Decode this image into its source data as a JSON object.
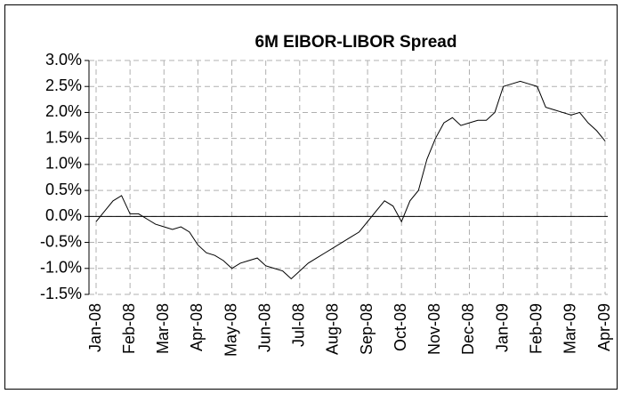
{
  "chart_data": {
    "type": "line",
    "title": "6M EIBOR-LIBOR Spread",
    "categories": [
      "Jan-08",
      null,
      null,
      null,
      "Feb-08",
      null,
      null,
      null,
      "Mar-08",
      null,
      null,
      null,
      "Apr-08",
      null,
      null,
      null,
      "May-08",
      null,
      null,
      null,
      "Jun-08",
      null,
      null,
      null,
      "Jul-08",
      null,
      null,
      null,
      "Aug-08",
      null,
      null,
      null,
      "Sep-08",
      null,
      null,
      null,
      "Oct-08",
      null,
      null,
      null,
      "Nov-08",
      null,
      null,
      null,
      "Dec-08",
      null,
      null,
      null,
      "Jan-09",
      null,
      null,
      null,
      "Feb-09",
      null,
      null,
      null,
      "Mar-09",
      null,
      null,
      null,
      "Apr-09"
    ],
    "values": [
      -0.1,
      0.1,
      0.3,
      0.4,
      0.05,
      0.05,
      -0.05,
      -0.15,
      -0.2,
      -0.25,
      -0.2,
      -0.3,
      -0.55,
      -0.7,
      -0.75,
      -0.85,
      -1.0,
      -0.9,
      -0.85,
      -0.8,
      -0.95,
      -1.0,
      -1.05,
      -1.2,
      -1.05,
      -0.9,
      -0.8,
      -0.7,
      -0.6,
      -0.5,
      -0.4,
      -0.3,
      -0.1,
      0.1,
      0.3,
      0.2,
      -0.1,
      0.3,
      0.5,
      1.1,
      1.5,
      1.8,
      1.9,
      1.75,
      1.8,
      1.85,
      1.85,
      2.0,
      2.5,
      2.55,
      2.6,
      2.55,
      2.5,
      2.1,
      2.05,
      2.0,
      1.95,
      2.0,
      1.8,
      1.65,
      1.45
    ],
    "color": "#000000",
    "ylim": [
      -1.5,
      3
    ],
    "yticks": [
      {
        "value": -1.5,
        "label": "-1.5%"
      },
      {
        "value": -1,
        "label": "-1.0%"
      },
      {
        "value": -0.5,
        "label": "-0.5%"
      },
      {
        "value": 0,
        "label": "0.0%"
      },
      {
        "value": 0.5,
        "label": "0.5%"
      },
      {
        "value": 1,
        "label": "1.0%"
      },
      {
        "value": 1.5,
        "label": "1.5%"
      },
      {
        "value": 2,
        "label": "2.0%"
      },
      {
        "value": 2.5,
        "label": "2.5%"
      },
      {
        "value": 3,
        "label": "3.0%"
      }
    ],
    "grid": true
  }
}
